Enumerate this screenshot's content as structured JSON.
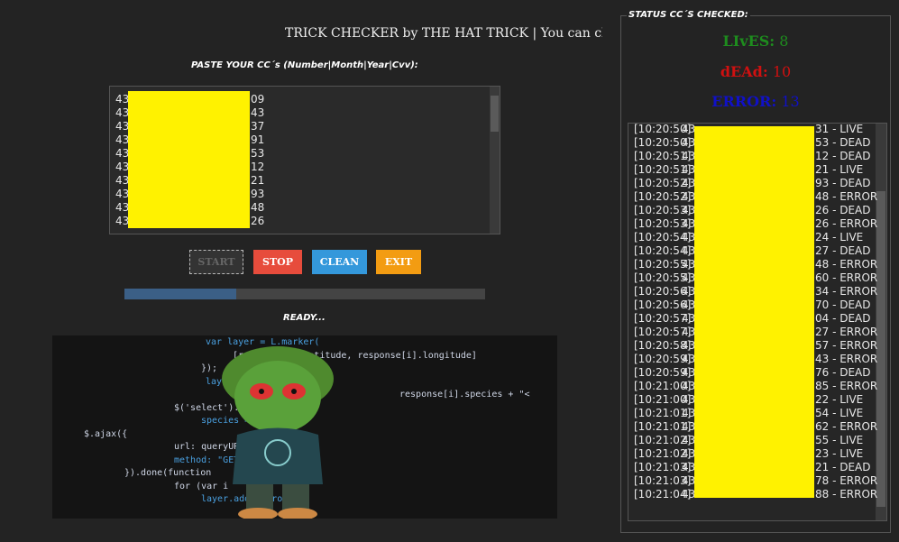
{
  "header": {
    "marquee": "TRICK CHECKER by THE HAT TRICK | You can ch"
  },
  "input": {
    "label": "PASTE YOUR CC´s (Number|Month|Year|Cvv):",
    "lines": [
      {
        "start": "43",
        "end": "09"
      },
      {
        "start": "43",
        "end": "43"
      },
      {
        "start": "43",
        "end": "37"
      },
      {
        "start": "43",
        "end": "91"
      },
      {
        "start": "43",
        "end": "53"
      },
      {
        "start": "43",
        "end": "12"
      },
      {
        "start": "43",
        "end": "21"
      },
      {
        "start": "43",
        "end": "93"
      },
      {
        "start": "43",
        "end": "48"
      },
      {
        "start": "43",
        "end": "26"
      }
    ]
  },
  "buttons": {
    "start": "START",
    "stop": "STOP",
    "clean": "CLEAN",
    "exit": "EXIT"
  },
  "progress": 31,
  "status_text": "READY...",
  "image": {
    "code_lines": [
      "var layer = L.marker(",
      "[response[i].latitude, response[i].longitude]",
      "});",
      "layer",
      "response[i].species + \"<",
      "$('select').change",
      "species = ",
      "$.ajax({",
      "url: queryURL,",
      "method: \"GET\"",
      "}).done(function",
      "for (var i",
      "layer.addTo(group);"
    ]
  },
  "status": {
    "title": "STATUS CC´S CHECKED:",
    "lives": {
      "label": "LIvES:",
      "count": 8
    },
    "dead": {
      "label": "dEAd:",
      "count": 10
    },
    "error": {
      "label": "ERROR:",
      "count": 13
    },
    "log": [
      {
        "time": "[10:20:50]",
        "start": "43",
        "end": "31 - LIVE"
      },
      {
        "time": "[10:20:50]",
        "start": "43",
        "end": "53 - DEAD"
      },
      {
        "time": "[10:20:51]",
        "start": "43",
        "end": "12 - DEAD"
      },
      {
        "time": "[10:20:51]",
        "start": "43",
        "end": "21 - LIVE"
      },
      {
        "time": "[10:20:52]",
        "start": "43",
        "end": "93 - DEAD"
      },
      {
        "time": "[10:20:52]",
        "start": "43",
        "end": "48 - ERROR"
      },
      {
        "time": "[10:20:53]",
        "start": "43",
        "end": "26 - DEAD"
      },
      {
        "time": "[10:20:53]",
        "start": "43",
        "end": "26 - ERROR"
      },
      {
        "time": "[10:20:54]",
        "start": "43",
        "end": "24 - LIVE"
      },
      {
        "time": "[10:20:54]",
        "start": "43",
        "end": "27 - DEAD"
      },
      {
        "time": "[10:20:55]",
        "start": "43",
        "end": "48 - ERROR"
      },
      {
        "time": "[10:20:55]",
        "start": "43",
        "end": "60 - ERROR"
      },
      {
        "time": "[10:20:56]",
        "start": "43",
        "end": "34 - ERROR"
      },
      {
        "time": "[10:20:56]",
        "start": "43",
        "end": "70 - DEAD"
      },
      {
        "time": "[10:20:57]",
        "start": "43",
        "end": "04 - DEAD"
      },
      {
        "time": "[10:20:57]",
        "start": "43",
        "end": "27 - ERROR"
      },
      {
        "time": "[10:20:58]",
        "start": "43",
        "end": "57 - ERROR"
      },
      {
        "time": "[10:20:59]",
        "start": "43",
        "end": "43 - ERROR"
      },
      {
        "time": "[10:20:59]",
        "start": "43",
        "end": "76 - DEAD"
      },
      {
        "time": "[10:21:00]",
        "start": "43",
        "end": "85 - ERROR"
      },
      {
        "time": "[10:21:00]",
        "start": "43",
        "end": "22 - LIVE"
      },
      {
        "time": "[10:21:01]",
        "start": "43",
        "end": "54 - LIVE"
      },
      {
        "time": "[10:21:01]",
        "start": "43",
        "end": "62 - ERROR"
      },
      {
        "time": "[10:21:02]",
        "start": "43",
        "end": "55 - LIVE"
      },
      {
        "time": "[10:21:02]",
        "start": "43",
        "end": "23 - LIVE"
      },
      {
        "time": "[10:21:03]",
        "start": "43",
        "end": "21 - DEAD"
      },
      {
        "time": "[10:21:03]",
        "start": "43",
        "end": "78 - ERROR"
      },
      {
        "time": "[10:21:04]",
        "start": "43",
        "end": "88 - ERROR"
      }
    ]
  }
}
